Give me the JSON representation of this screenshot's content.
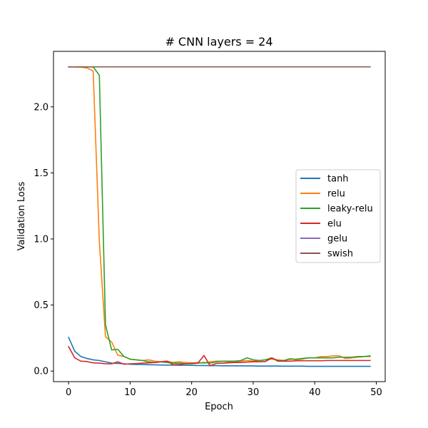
{
  "chart_data": {
    "type": "line",
    "title": "# CNN layers = 24",
    "xlabel": "Epoch",
    "ylabel": "Validation Loss",
    "xlim": [
      -2.45,
      51.45
    ],
    "ylim": [
      -0.08,
      2.42
    ],
    "xticks": [
      0,
      10,
      20,
      30,
      40,
      50
    ],
    "xtick_labels": [
      "0",
      "10",
      "20",
      "30",
      "40",
      "50"
    ],
    "yticks": [
      0.0,
      0.5,
      1.0,
      1.5,
      2.0
    ],
    "ytick_labels": [
      "0.0",
      "0.5",
      "1.0",
      "1.5",
      "2.0"
    ],
    "grid": false,
    "legend_position": "center-right",
    "series": [
      {
        "name": "tanh",
        "color": "#1f77b4",
        "x": [
          0,
          1,
          2,
          3,
          4,
          5,
          6,
          7,
          8,
          9,
          10,
          11,
          12,
          13,
          14,
          15,
          16,
          17,
          18,
          19,
          20,
          21,
          22,
          23,
          24,
          25,
          26,
          27,
          28,
          29,
          30,
          31,
          32,
          33,
          34,
          35,
          36,
          37,
          38,
          39,
          40,
          41,
          42,
          43,
          44,
          45,
          46,
          47,
          48,
          49
        ],
        "values": [
          0.255,
          0.15,
          0.11,
          0.095,
          0.085,
          0.08,
          0.07,
          0.06,
          0.058,
          0.055,
          0.052,
          0.05,
          0.05,
          0.048,
          0.047,
          0.046,
          0.045,
          0.045,
          0.044,
          0.044,
          0.043,
          0.042,
          0.042,
          0.041,
          0.041,
          0.04,
          0.04,
          0.04,
          0.039,
          0.039,
          0.039,
          0.038,
          0.038,
          0.038,
          0.038,
          0.037,
          0.037,
          0.037,
          0.037,
          0.036,
          0.036,
          0.036,
          0.036,
          0.036,
          0.036,
          0.036,
          0.036,
          0.036,
          0.036,
          0.036
        ]
      },
      {
        "name": "relu",
        "color": "#ff7f0e",
        "x": [
          0,
          1,
          2,
          3,
          4,
          5,
          6,
          7,
          8,
          9,
          10,
          11,
          12,
          13,
          14,
          15,
          16,
          17,
          18,
          19,
          20,
          21,
          22,
          23,
          24,
          25,
          26,
          27,
          28,
          29,
          30,
          31,
          32,
          33,
          34,
          35,
          36,
          37,
          38,
          39,
          40,
          41,
          42,
          43,
          44,
          45,
          46,
          47,
          48,
          49
        ],
        "values": [
          2.302,
          2.302,
          2.3,
          2.295,
          2.27,
          0.98,
          0.26,
          0.22,
          0.12,
          0.11,
          0.09,
          0.085,
          0.08,
          0.085,
          0.075,
          0.07,
          0.075,
          0.065,
          0.07,
          0.065,
          0.06,
          0.065,
          0.06,
          0.07,
          0.075,
          0.075,
          0.07,
          0.07,
          0.075,
          0.08,
          0.075,
          0.08,
          0.085,
          0.09,
          0.085,
          0.08,
          0.095,
          0.085,
          0.09,
          0.1,
          0.1,
          0.11,
          0.11,
          0.115,
          0.115,
          0.095,
          0.1,
          0.105,
          0.11,
          0.11
        ]
      },
      {
        "name": "leaky-relu",
        "color": "#2ca02c",
        "x": [
          0,
          1,
          2,
          3,
          4,
          5,
          6,
          7,
          8,
          9,
          10,
          11,
          12,
          13,
          14,
          15,
          16,
          17,
          18,
          19,
          20,
          21,
          22,
          23,
          24,
          25,
          26,
          27,
          28,
          29,
          30,
          31,
          32,
          33,
          34,
          35,
          36,
          37,
          38,
          39,
          40,
          41,
          42,
          43,
          44,
          45,
          46,
          47,
          48,
          49
        ],
        "values": [
          2.302,
          2.302,
          2.302,
          2.302,
          2.302,
          2.24,
          0.35,
          0.16,
          0.165,
          0.11,
          0.09,
          0.085,
          0.08,
          0.07,
          0.065,
          0.07,
          0.065,
          0.06,
          0.06,
          0.055,
          0.055,
          0.06,
          0.065,
          0.06,
          0.07,
          0.075,
          0.075,
          0.075,
          0.08,
          0.1,
          0.085,
          0.08,
          0.085,
          0.1,
          0.08,
          0.08,
          0.09,
          0.09,
          0.095,
          0.1,
          0.1,
          0.1,
          0.1,
          0.1,
          0.105,
          0.105,
          0.105,
          0.11,
          0.11,
          0.115
        ]
      },
      {
        "name": "elu",
        "color": "#d62728",
        "x": [
          0,
          1,
          2,
          3,
          4,
          5,
          6,
          7,
          8,
          9,
          10,
          11,
          12,
          13,
          14,
          15,
          16,
          17,
          18,
          19,
          20,
          21,
          22,
          23,
          24,
          25,
          26,
          27,
          28,
          29,
          30,
          31,
          32,
          33,
          34,
          35,
          36,
          37,
          38,
          39,
          40,
          41,
          42,
          43,
          44,
          45,
          46,
          47,
          48,
          49
        ],
        "values": [
          0.185,
          0.1,
          0.075,
          0.072,
          0.062,
          0.06,
          0.055,
          0.055,
          0.07,
          0.052,
          0.055,
          0.057,
          0.06,
          0.062,
          0.065,
          0.07,
          0.075,
          0.048,
          0.05,
          0.055,
          0.06,
          0.06,
          0.118,
          0.04,
          0.058,
          0.06,
          0.063,
          0.065,
          0.065,
          0.068,
          0.07,
          0.07,
          0.072,
          0.1,
          0.075,
          0.075,
          0.075,
          0.078,
          0.078,
          0.078,
          0.078,
          0.078,
          0.08,
          0.08,
          0.08,
          0.08,
          0.08,
          0.08,
          0.08,
          0.08
        ]
      },
      {
        "name": "gelu",
        "color": "#9467bd",
        "x": [
          0,
          1,
          2,
          3,
          4,
          5,
          6,
          7,
          8,
          9,
          10,
          11,
          12,
          13,
          14,
          15,
          16,
          17,
          18,
          19,
          20,
          21,
          22,
          23,
          24,
          25,
          26,
          27,
          28,
          29,
          30,
          31,
          32,
          33,
          34,
          35,
          36,
          37,
          38,
          39,
          40,
          41,
          42,
          43,
          44,
          45,
          46,
          47,
          48,
          49
        ],
        "values": [
          2.3026,
          2.3026,
          2.3026,
          2.3026,
          2.3026,
          2.3026,
          2.3026,
          2.3026,
          2.3026,
          2.3026,
          2.3026,
          2.3026,
          2.3026,
          2.3026,
          2.3026,
          2.3026,
          2.3026,
          2.3026,
          2.3026,
          2.3026,
          2.3026,
          2.3026,
          2.3026,
          2.3026,
          2.3026,
          2.3026,
          2.3026,
          2.3026,
          2.3026,
          2.3026,
          2.3026,
          2.3026,
          2.3026,
          2.3026,
          2.3026,
          2.3026,
          2.3026,
          2.3026,
          2.3026,
          2.3026,
          2.3026,
          2.3026,
          2.3026,
          2.3026,
          2.3026,
          2.3026,
          2.3026,
          2.3026,
          2.3026,
          2.3026
        ]
      },
      {
        "name": "swish",
        "color": "#8c564b",
        "x": [
          0,
          1,
          2,
          3,
          4,
          5,
          6,
          7,
          8,
          9,
          10,
          11,
          12,
          13,
          14,
          15,
          16,
          17,
          18,
          19,
          20,
          21,
          22,
          23,
          24,
          25,
          26,
          27,
          28,
          29,
          30,
          31,
          32,
          33,
          34,
          35,
          36,
          37,
          38,
          39,
          40,
          41,
          42,
          43,
          44,
          45,
          46,
          47,
          48,
          49
        ],
        "values": [
          2.3026,
          2.3026,
          2.3026,
          2.3026,
          2.3026,
          2.3026,
          2.3026,
          2.3026,
          2.3026,
          2.3026,
          2.3026,
          2.3026,
          2.3026,
          2.3026,
          2.3026,
          2.3026,
          2.3026,
          2.3026,
          2.3026,
          2.3026,
          2.3026,
          2.3026,
          2.3026,
          2.3026,
          2.3026,
          2.3026,
          2.3026,
          2.3026,
          2.3026,
          2.3026,
          2.3026,
          2.3026,
          2.3026,
          2.3026,
          2.3026,
          2.3026,
          2.3026,
          2.3026,
          2.3026,
          2.3026,
          2.3026,
          2.3026,
          2.3026,
          2.3026,
          2.3026,
          2.3026,
          2.3026,
          2.3026,
          2.3026,
          2.3026
        ]
      }
    ]
  }
}
